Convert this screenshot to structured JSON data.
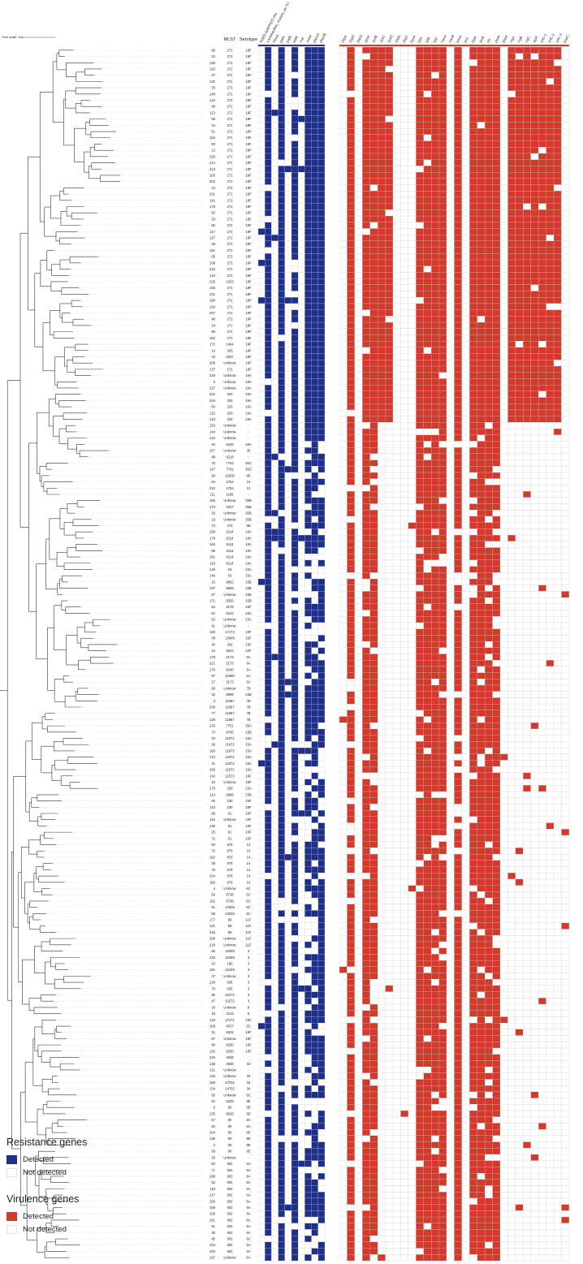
{
  "scale_label": "Tree scale: 0.1",
  "column_headers": {
    "mlst": "MLST",
    "serotype": "Serotype"
  },
  "resistance_genes": [
    "Ant(6)-Ia/APH(3')-IIIa",
    "Lactobacillus_mutant_otr-TC",
    "PmrA",
    "patA",
    "patB",
    "tetM",
    "mel",
    "mefA",
    "pbp1A",
    "pbp2B"
  ],
  "virulence_genes": [
    "cbpA",
    "cbpD",
    "cbpG",
    "cpsA",
    "cpsB",
    "cpsC",
    "cpsD",
    "cbpE",
    "cbpJ",
    "hysA",
    "lytA",
    "lytB",
    "lytC",
    "nanA",
    "nanB",
    "pavA",
    "pce",
    "piaA",
    "piuA",
    "ply",
    "psaA",
    "pspA",
    "rrgA",
    "rrgB",
    "rrgC",
    "sipA",
    "srtC-1",
    "srtC-2",
    "srtC-3",
    "pspC"
  ],
  "colors": {
    "resistance": "#1f2f8c",
    "virulence": "#d33a2c",
    "not_detected": "#ffffff",
    "grid": "#cccccc"
  },
  "strains": [
    [
      "86",
      "271",
      "19F"
    ],
    [
      "22",
      "271",
      "19F"
    ],
    [
      "129",
      "271",
      "19F"
    ],
    [
      "120",
      "271",
      "19F"
    ],
    [
      "27",
      "271",
      "19F"
    ],
    [
      "132",
      "271",
      "19F"
    ],
    [
      "35",
      "271",
      "19F"
    ],
    [
      "148",
      "271",
      "19F"
    ],
    [
      "124",
      "271",
      "19F"
    ],
    [
      "49",
      "271",
      "19F"
    ],
    [
      "113",
      "271",
      "19F"
    ],
    [
      "68",
      "271",
      "19F"
    ],
    [
      "44",
      "271",
      "19F"
    ],
    [
      "61",
      "271",
      "19F"
    ],
    [
      "164",
      "271",
      "19F"
    ],
    [
      "93",
      "271",
      "19F"
    ],
    [
      "12",
      "271",
      "19F"
    ],
    [
      "226",
      "271",
      "19F"
    ],
    [
      "214",
      "271",
      "19F"
    ],
    [
      "213",
      "271",
      "19F"
    ],
    [
      "103",
      "271",
      "19F"
    ],
    [
      "202",
      "271",
      "19F"
    ],
    [
      "34",
      "271",
      "19F"
    ],
    [
      "201",
      "271",
      "19F"
    ],
    [
      "141",
      "271",
      "19F"
    ],
    [
      "178",
      "271",
      "19F"
    ],
    [
      "65",
      "271",
      "19F"
    ],
    [
      "33",
      "271",
      "19F"
    ],
    [
      "50",
      "271",
      "19F"
    ],
    [
      "117",
      "271",
      "19F"
    ],
    [
      "127",
      "271",
      "19F"
    ],
    [
      "28",
      "271",
      "19F"
    ],
    [
      "151",
      "271",
      "19F"
    ],
    [
      "95",
      "271",
      "19F"
    ],
    [
      "108",
      "271",
      "19F"
    ],
    [
      "216",
      "271",
      "19F"
    ],
    [
      "143",
      "271",
      "19F"
    ],
    [
      "225",
      "2323",
      "19F"
    ],
    [
      "105",
      "271",
      "19F"
    ],
    [
      "231",
      "271",
      "19F"
    ],
    [
      "150",
      "271",
      "19F"
    ],
    [
      "154",
      "271",
      "19F"
    ],
    [
      "207",
      "271",
      "19F"
    ],
    [
      "46",
      "271",
      "19F"
    ],
    [
      "24",
      "271",
      "19F"
    ],
    [
      "69",
      "271",
      "19F"
    ],
    [
      "152",
      "271",
      "19F"
    ],
    [
      "172",
      "1464",
      "19F"
    ],
    [
      "14",
      "320",
      "19F"
    ],
    [
      "78",
      "1937",
      "19F"
    ],
    [
      "205",
      "Unknow",
      "19F"
    ],
    [
      "137",
      "271",
      "19F"
    ],
    [
      "219",
      "Unknow",
      "19A"
    ],
    [
      "8",
      "Unknow",
      "19A"
    ],
    [
      "227",
      "Unknow",
      "19A"
    ],
    [
      "222",
      "320",
      "19A"
    ],
    [
      "224",
      "320",
      "19A"
    ],
    [
      "83",
      "320",
      "19A"
    ],
    [
      "115",
      "320",
      "19A"
    ],
    [
      "123",
      "320",
      "19A"
    ],
    [
      "153",
      "Unknow",
      "-"
    ],
    [
      "144",
      "Unknow",
      "-"
    ],
    [
      "122",
      "Unknow",
      "-"
    ],
    [
      "94",
      "8246",
      "28A"
    ],
    [
      "157",
      "Unknow",
      "36"
    ],
    [
      "98",
      "6318",
      "-"
    ],
    [
      "75",
      "7752",
      "35C"
    ],
    [
      "147",
      "7752",
      "35C"
    ],
    [
      "99",
      "15830",
      "6E"
    ],
    [
      "64",
      "2754",
      "13"
    ],
    [
      "210",
      "2754",
      "13"
    ],
    [
      "111",
      "1106",
      "-"
    ],
    [
      "155",
      "Unknow",
      "35B"
    ],
    [
      "173",
      "6327",
      "35B"
    ],
    [
      "29",
      "Unknow",
      "35B"
    ],
    [
      "19",
      "Unknow",
      "35B"
    ],
    [
      "74",
      "473",
      "6B"
    ],
    [
      "159",
      "9114",
      "19A"
    ],
    [
      "179",
      "9114",
      "19A"
    ],
    [
      "163",
      "9114",
      "19A"
    ],
    [
      "89",
      "9114",
      "19A"
    ],
    [
      "161",
      "9114",
      "19A"
    ],
    [
      "119",
      "9114",
      "19A"
    ],
    [
      "149",
      "63",
      "15A"
    ],
    [
      "146",
      "63",
      "15A"
    ],
    [
      "15",
      "9882",
      "15B"
    ],
    [
      "107",
      "6555",
      "15B"
    ],
    [
      "57",
      "Unknow",
      "15B"
    ],
    [
      "171",
      "6555",
      "15B"
    ],
    [
      "54",
      "3176",
      "23F"
    ],
    [
      "62",
      "5242",
      "23A"
    ],
    [
      "62",
      "Unknow",
      "23A"
    ],
    [
      "41",
      "Unknow",
      "-"
    ],
    [
      "126",
      "17173",
      "23F"
    ],
    [
      "38",
      "13646",
      "23F"
    ],
    [
      "40",
      "342",
      "23F"
    ],
    [
      "13",
      "3543",
      "23F"
    ],
    [
      "178",
      "3173",
      "6A"
    ],
    [
      "221",
      "3173",
      "6A"
    ],
    [
      "170",
      "6340",
      "6A"
    ],
    [
      "97",
      "11968",
      "6A"
    ],
    [
      "17",
      "3173",
      "6A"
    ],
    [
      "88",
      "Unknow",
      "7B"
    ],
    [
      "32",
      "8589",
      "15B"
    ],
    [
      "3",
      "11967",
      "7B"
    ],
    [
      "209",
      "11967",
      "7B"
    ],
    [
      "77",
      "11967",
      "7B"
    ],
    [
      "128",
      "11967",
      "7B"
    ],
    [
      "233",
      "7751",
      "35A"
    ],
    [
      "73",
      "9785",
      "15B"
    ],
    [
      "43",
      "11972",
      "15A"
    ],
    [
      "36",
      "11972",
      "15A"
    ],
    [
      "160",
      "11972",
      "15A"
    ],
    [
      "174",
      "11972",
      "15A"
    ],
    [
      "21",
      "11972",
      "15A"
    ],
    [
      "165",
      "11972",
      "15A"
    ],
    [
      "142",
      "11572",
      "19F"
    ],
    [
      "10",
      "Unknow",
      "19F"
    ],
    [
      "175",
      "230",
      "23A"
    ],
    [
      "114",
      "6996",
      "23B"
    ],
    [
      "55",
      "230",
      "23F"
    ],
    [
      "110",
      "230",
      "29F"
    ],
    [
      "80",
      "81",
      "23F"
    ],
    [
      "116",
      "Unknow",
      "23F"
    ],
    [
      "130",
      "81",
      "23F"
    ],
    [
      "25",
      "81",
      "23F"
    ],
    [
      "72",
      "81",
      "23F"
    ],
    [
      "90",
      "876",
      "14"
    ],
    [
      "76",
      "876",
      "14"
    ],
    [
      "162",
      "876",
      "14"
    ],
    [
      "39",
      "876",
      "14"
    ],
    [
      "79",
      "876",
      "14"
    ],
    [
      "204",
      "876",
      "14"
    ],
    [
      "180",
      "876",
      "14"
    ],
    [
      "4",
      "Unknow",
      "6C"
    ],
    [
      "56",
      "8738",
      "6C"
    ],
    [
      "102",
      "8738",
      "6C"
    ],
    [
      "61",
      "13026",
      "6C"
    ],
    [
      "58",
      "13026",
      "6C"
    ],
    [
      "177",
      "99",
      "11F"
    ],
    [
      "131",
      "99",
      "11F"
    ],
    [
      "215",
      "99",
      "11F"
    ],
    [
      "208",
      "Unknow",
      "11F"
    ],
    [
      "218",
      "Unknow",
      "11F"
    ],
    [
      "65",
      "15069",
      "3"
    ],
    [
      "223",
      "15069",
      "3"
    ],
    [
      "42",
      "180",
      "3"
    ],
    [
      "181",
      "12449",
      "3"
    ],
    [
      "37",
      "Unknow",
      "3"
    ],
    [
      "228",
      "505",
      "3"
    ],
    [
      "70",
      "505",
      "3"
    ],
    [
      "66",
      "15272",
      "3"
    ],
    [
      "47",
      "15272",
      "3"
    ],
    [
      "18",
      "Unknow",
      "8"
    ],
    [
      "16",
      "4216",
      "8"
    ],
    [
      "133",
      "17171",
      "23F"
    ],
    [
      "109",
      "4537",
      "6C"
    ],
    [
      "31",
      "6342",
      "16F"
    ],
    [
      "87",
      "Unknow",
      "16F"
    ],
    [
      "96",
      "8250",
      "16F"
    ],
    [
      "145",
      "8250",
      "16F"
    ],
    [
      "220",
      "4635",
      "-"
    ],
    [
      "138",
      "4560",
      "34"
    ],
    [
      "121",
      "Unknow",
      "-"
    ],
    [
      "125",
      "Unknow",
      "34"
    ],
    [
      "166",
      "14702",
      "34"
    ],
    [
      "134",
      "14702",
      "34"
    ],
    [
      "60",
      "Unknow",
      "6C"
    ],
    [
      "52",
      "6339",
      "6E"
    ],
    [
      "6",
      "90",
      "6E"
    ],
    [
      "135",
      "8526",
      "6E"
    ],
    [
      "67",
      "90",
      "6A"
    ],
    [
      "53",
      "90",
      "6A"
    ],
    [
      "104",
      "90",
      "6E"
    ],
    [
      "136",
      "90",
      "6E"
    ],
    [
      "2",
      "90",
      "6E"
    ],
    [
      "59",
      "90",
      "6E"
    ],
    [
      "26",
      "Unknow",
      "-"
    ],
    [
      "83",
      "902",
      "6A"
    ],
    [
      "71",
      "902",
      "6A"
    ],
    [
      "168",
      "902",
      "6A"
    ],
    [
      "92",
      "902",
      "6A"
    ],
    [
      "118",
      "902",
      "6A"
    ],
    [
      "217",
      "902",
      "6A"
    ],
    [
      "106",
      "902",
      "6A"
    ],
    [
      "169",
      "902",
      "6A"
    ],
    [
      "158",
      "902",
      "6A"
    ],
    [
      "101",
      "902",
      "6A"
    ],
    [
      "91",
      "902",
      "6A"
    ],
    [
      "30",
      "902",
      "6A"
    ],
    [
      "45",
      "902",
      "6A"
    ],
    [
      "234",
      "902",
      "6A"
    ],
    [
      "203",
      "902",
      "6A"
    ],
    [
      "167",
      "Unknow",
      "6A"
    ]
  ],
  "legend": {
    "resistance_title": "Resistance genes",
    "virulence_title": "Virulence genes",
    "detected": "Detected",
    "not_detected": "Not detected"
  }
}
